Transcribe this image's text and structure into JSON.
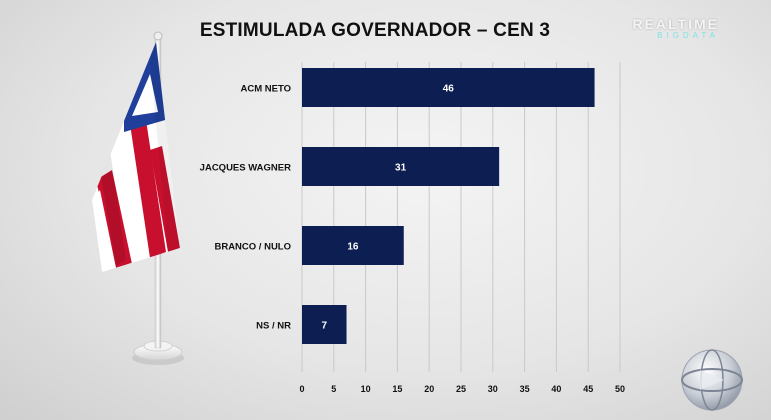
{
  "title": "ESTIMULADA GOVERNADOR – CEN 3",
  "brand": {
    "line1": "REALTIME",
    "line2": "BIGDATA"
  },
  "colors": {
    "bar": "#0d1f52",
    "bar_label": "#ffffff",
    "grid": "#c9c9c9",
    "text": "#111111"
  },
  "chart_data": {
    "type": "bar",
    "orientation": "horizontal",
    "categories": [
      "ACM NETO",
      "JACQUES WAGNER",
      "BRANCO / NULO",
      "NS / NR"
    ],
    "values": [
      46,
      31,
      16,
      7
    ],
    "xlim": [
      0,
      50
    ],
    "xticks": [
      0,
      5,
      10,
      15,
      20,
      25,
      30,
      35,
      40,
      45,
      50
    ],
    "grid": true,
    "legend": "none"
  }
}
